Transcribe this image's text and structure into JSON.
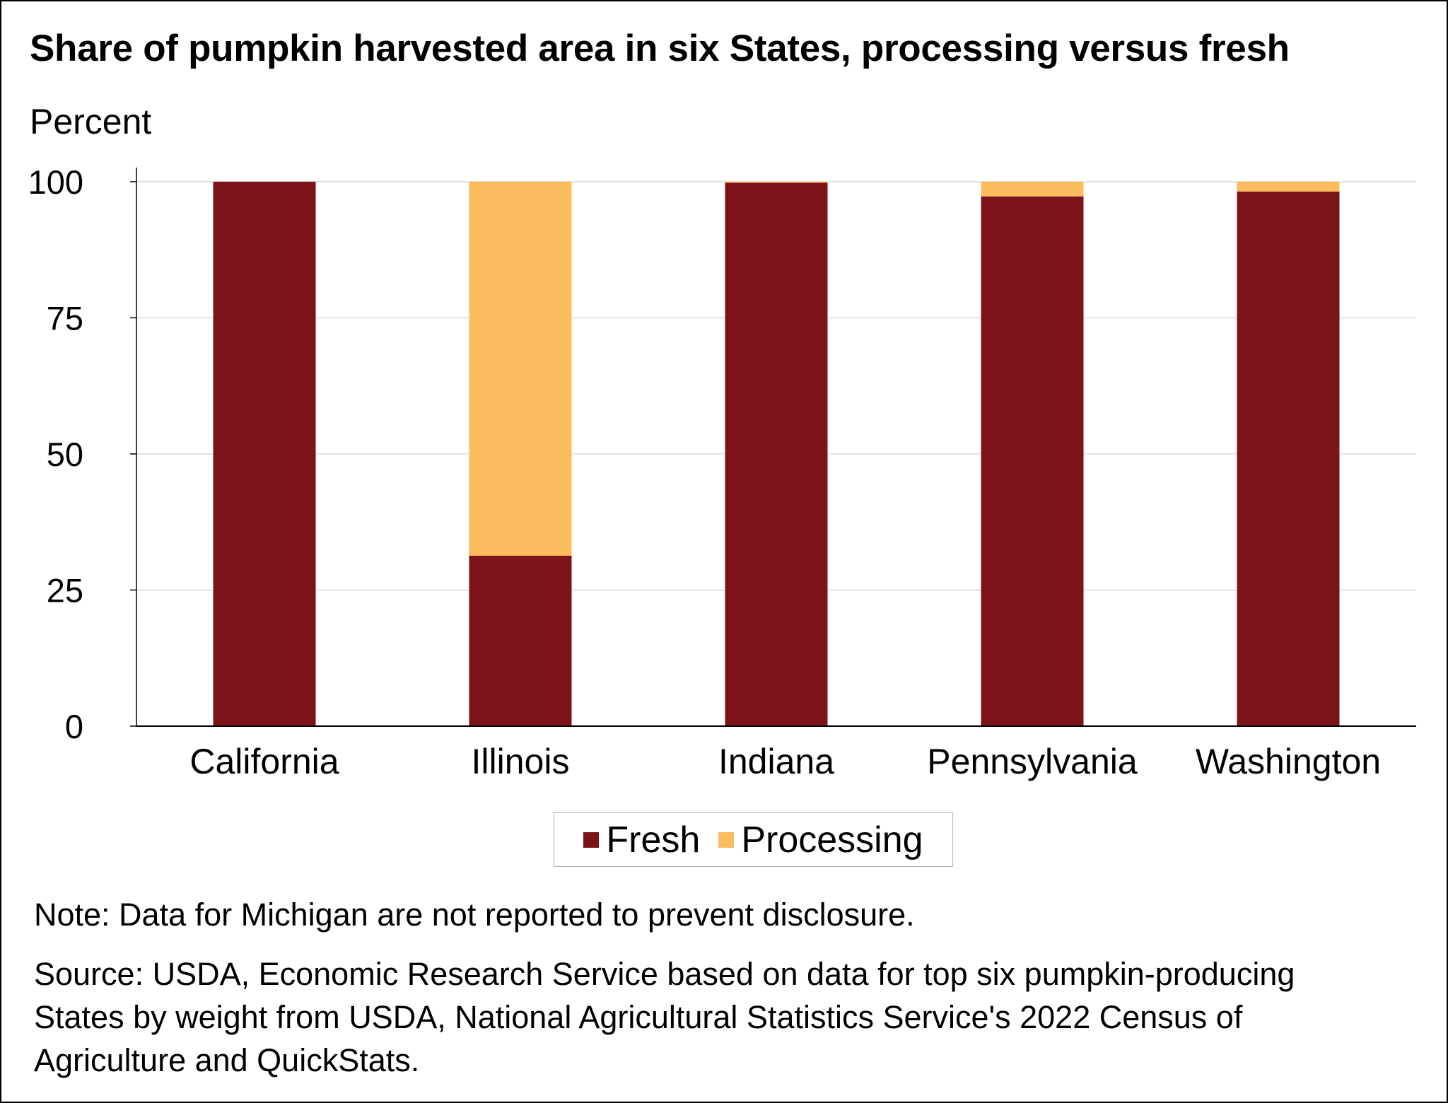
{
  "title": "Share of pumpkin harvested area in six States, processing versus fresh",
  "unit_label": "Percent",
  "note": "Note: Data for Michigan are not reported to prevent disclosure.",
  "source": "Source: USDA, Economic Research Service based on data for top six pumpkin-producing States by weight from USDA, National Agricultural Statistics Service's 2022 Census of Agriculture and QuickStats.",
  "legend": {
    "placement": "bottom-center",
    "items": [
      {
        "label": "Fresh",
        "color": "#7b1418"
      },
      {
        "label": "Processing",
        "color": "#fcbc5e"
      }
    ]
  },
  "chart_data": {
    "type": "bar",
    "stacked": true,
    "title": "Share of pumpkin harvested area in six States, processing versus fresh",
    "xlabel": "",
    "ylabel": "Percent",
    "ylim": [
      0,
      100
    ],
    "yticks": [
      0,
      25,
      50,
      75,
      100
    ],
    "grid": true,
    "categories": [
      "California",
      "Illinois",
      "Indiana",
      "Pennsylvania",
      "Washington"
    ],
    "series": [
      {
        "name": "Fresh",
        "color": "#7b1418",
        "values": [
          100,
          31.3,
          99.8,
          97.3,
          98.2
        ]
      },
      {
        "name": "Processing",
        "color": "#fcbc5e",
        "values": [
          0,
          68.7,
          0.2,
          2.7,
          1.8
        ]
      }
    ]
  }
}
